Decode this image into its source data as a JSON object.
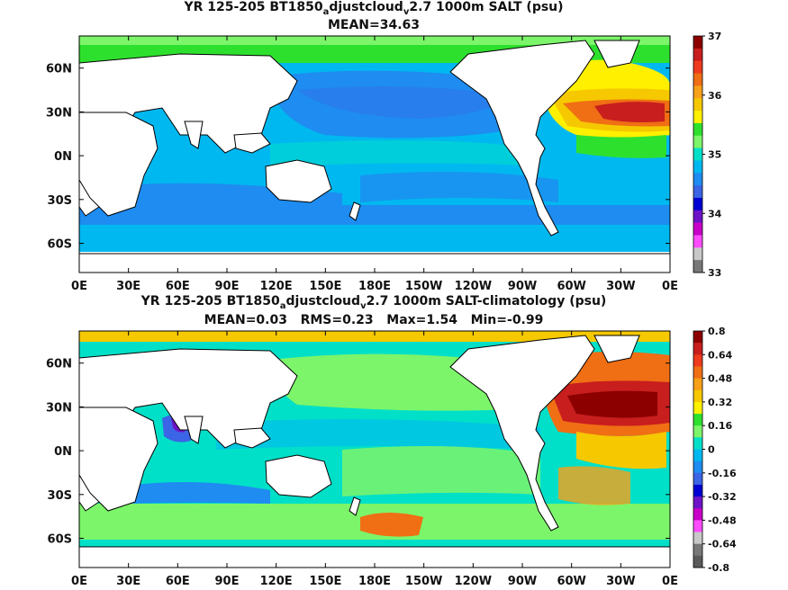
{
  "chart_data": [
    {
      "type": "heatmap",
      "title": "YR 125-205 BT1850_adjustcloud_v2.7 1000m SALT (psu)",
      "title_parts": {
        "main": "YR 125-205 BT1850",
        "sub1": "a",
        "mid": "djustcloud",
        "sub2": "v",
        "tail": "2.7 1000m SALT (psu)"
      },
      "stats": "MEAN=34.63",
      "x_ticks": [
        "0E",
        "30E",
        "60E",
        "90E",
        "120E",
        "150E",
        "180E",
        "150W",
        "120W",
        "90W",
        "60W",
        "30W",
        "0E"
      ],
      "y_ticks": [
        "60N",
        "30N",
        "0N",
        "30S",
        "60S"
      ],
      "colorbar_labels": [
        "37",
        "36",
        "35",
        "34",
        "33"
      ],
      "colorbar_colors": [
        "#8c0000",
        "#c81e1e",
        "#ee3a1e",
        "#f06e14",
        "#f7a019",
        "#f5c800",
        "#fff000",
        "#2ee02e",
        "#7cf56a",
        "#00e0c8",
        "#00b8f0",
        "#1e8cf0",
        "#3c64e6",
        "#0000d2",
        "#6e14c8",
        "#c800c8",
        "#ff4cff",
        "#c8c8c8",
        "#787878"
      ],
      "zrange": [
        33,
        37
      ]
    },
    {
      "type": "heatmap",
      "title": "YR 125-205 BT1850_adjustcloud_v2.7 1000m SALT-climatology (psu)",
      "title_parts": {
        "main": "YR 125-205 BT1850",
        "sub1": "a",
        "mid": "djustcloud",
        "sub2": "v",
        "tail": "2.7 1000m SALT-climatology (psu)"
      },
      "stats": "MEAN=0.03   RMS=0.23   Max=1.54   Min=-0.99",
      "x_ticks": [
        "0E",
        "30E",
        "60E",
        "90E",
        "120E",
        "150E",
        "180E",
        "150W",
        "120W",
        "90W",
        "60W",
        "30W",
        "0E"
      ],
      "y_ticks": [
        "60N",
        "30N",
        "0N",
        "30S",
        "60S"
      ],
      "colorbar_labels": [
        "0.8",
        "0.64",
        "0.48",
        "0.32",
        "0.16",
        "0",
        "-0.16",
        "-0.32",
        "-0.48",
        "-0.64",
        "-0.8"
      ],
      "colorbar_colors": [
        "#8c0000",
        "#c81e1e",
        "#ee3a1e",
        "#f06e14",
        "#f7a019",
        "#f5c800",
        "#fff000",
        "#2ee02e",
        "#7cf56a",
        "#00e0c8",
        "#00b8f0",
        "#1e8cf0",
        "#3c64e6",
        "#0000d2",
        "#6e14c8",
        "#c800c8",
        "#ff4cff",
        "#c8c8c8",
        "#787878",
        "#5a5a5a"
      ],
      "zrange": [
        -0.8,
        0.8
      ],
      "summary": {
        "MEAN": 0.03,
        "RMS": 0.23,
        "Max": 1.54,
        "Min": -0.99
      }
    }
  ]
}
